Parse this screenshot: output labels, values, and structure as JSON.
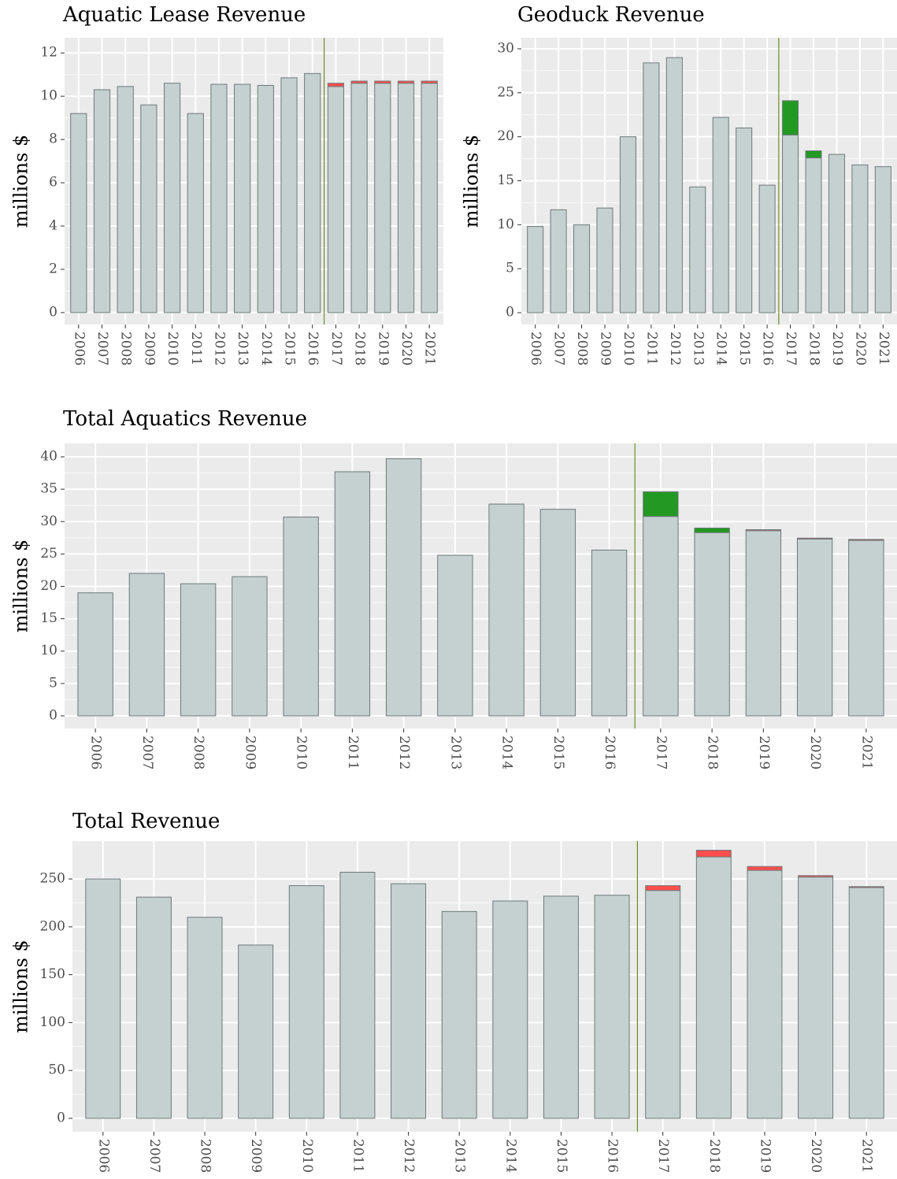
{
  "chart_data": [
    {
      "type": "bar",
      "title": "Aquatic Lease Revenue",
      "y_label": "millions $",
      "categories": [
        "2006",
        "2007",
        "2008",
        "2009",
        "2010",
        "2011",
        "2012",
        "2013",
        "2014",
        "2015",
        "2016",
        "2017",
        "2018",
        "2019",
        "2020",
        "2021"
      ],
      "series": [
        {
          "color": "#c5d0d0",
          "values": [
            9.2,
            10.3,
            10.45,
            9.6,
            10.6,
            9.2,
            10.55,
            10.55,
            10.5,
            10.85,
            11.05,
            10.45,
            10.6,
            10.6,
            10.6,
            10.6
          ]
        },
        {
          "color": "#ff4d4d",
          "values": [
            null,
            null,
            null,
            null,
            null,
            null,
            null,
            null,
            null,
            null,
            null,
            0.15,
            0.1,
            0.1,
            0.1,
            0.1
          ]
        }
      ],
      "ylim": [
        -0.55,
        12.7
      ],
      "yticks": [
        0,
        2,
        4,
        6,
        8,
        10,
        12
      ],
      "grid": true,
      "vline_after": "2016",
      "vline_color": "#6b8e23"
    },
    {
      "type": "bar",
      "title": "Geoduck Revenue",
      "y_label": "millions $",
      "categories": [
        "2006",
        "2007",
        "2008",
        "2009",
        "2010",
        "2011",
        "2012",
        "2013",
        "2014",
        "2015",
        "2016",
        "2017",
        "2018",
        "2019",
        "2020",
        "2021"
      ],
      "series": [
        {
          "color": "#c5d0d0",
          "values": [
            9.8,
            11.7,
            10.0,
            11.9,
            20.0,
            28.4,
            29.0,
            14.3,
            22.2,
            21.0,
            14.5,
            20.2,
            17.6,
            18.0,
            16.8,
            16.6
          ]
        },
        {
          "color": "#229922",
          "values": [
            null,
            null,
            null,
            null,
            null,
            null,
            null,
            null,
            null,
            null,
            null,
            3.9,
            0.8,
            null,
            null,
            null
          ]
        }
      ],
      "ylim": [
        -1.34,
        31.25
      ],
      "yticks": [
        0,
        5,
        10,
        15,
        20,
        25,
        30
      ],
      "grid": true,
      "vline_after": "2016",
      "vline_color": "#6b8e23"
    },
    {
      "type": "bar",
      "title": "Total Aquatics Revenue",
      "y_label": "millions $",
      "categories": [
        "2006",
        "2007",
        "2008",
        "2009",
        "2010",
        "2011",
        "2012",
        "2013",
        "2014",
        "2015",
        "2016",
        "2017",
        "2018",
        "2019",
        "2020",
        "2021"
      ],
      "series": [
        {
          "color": "#c5d0d0",
          "values": [
            19.0,
            22.0,
            20.4,
            21.5,
            30.7,
            37.7,
            39.7,
            24.8,
            32.7,
            31.9,
            25.6,
            30.8,
            28.3,
            28.6,
            27.3,
            27.1
          ]
        },
        {
          "color": "#229922",
          "values": [
            null,
            null,
            null,
            null,
            null,
            null,
            null,
            null,
            null,
            null,
            null,
            3.8,
            0.7,
            null,
            null,
            null
          ]
        },
        {
          "color": "#ff4d4d",
          "values": [
            null,
            null,
            null,
            null,
            null,
            null,
            null,
            null,
            null,
            null,
            null,
            null,
            null,
            0.15,
            0.15,
            0.15
          ]
        }
      ],
      "ylim": [
        -1.95,
        42.07
      ],
      "yticks": [
        0,
        5,
        10,
        15,
        20,
        25,
        30,
        35,
        40
      ],
      "grid": true,
      "vline_after": "2016",
      "vline_color": "#6b8e23"
    },
    {
      "type": "bar",
      "title": "Total Revenue",
      "y_label": "millions $",
      "categories": [
        "2006",
        "2007",
        "2008",
        "2009",
        "2010",
        "2011",
        "2012",
        "2013",
        "2014",
        "2015",
        "2016",
        "2017",
        "2018",
        "2019",
        "2020",
        "2021"
      ],
      "series": [
        {
          "color": "#c5d0d0",
          "values": [
            250,
            231,
            210,
            181,
            243,
            257,
            245,
            216,
            227,
            232,
            233,
            238,
            273,
            259,
            252,
            241
          ]
        },
        {
          "color": "#ff4d4d",
          "values": [
            null,
            null,
            null,
            null,
            null,
            null,
            null,
            null,
            null,
            null,
            null,
            5,
            7,
            4,
            1.5,
            1
          ]
        }
      ],
      "ylim": [
        -14,
        289.5
      ],
      "yticks": [
        0,
        50,
        100,
        150,
        200,
        250
      ],
      "grid": true,
      "vline_after": "2016",
      "vline_color": "#6b8e23"
    }
  ]
}
